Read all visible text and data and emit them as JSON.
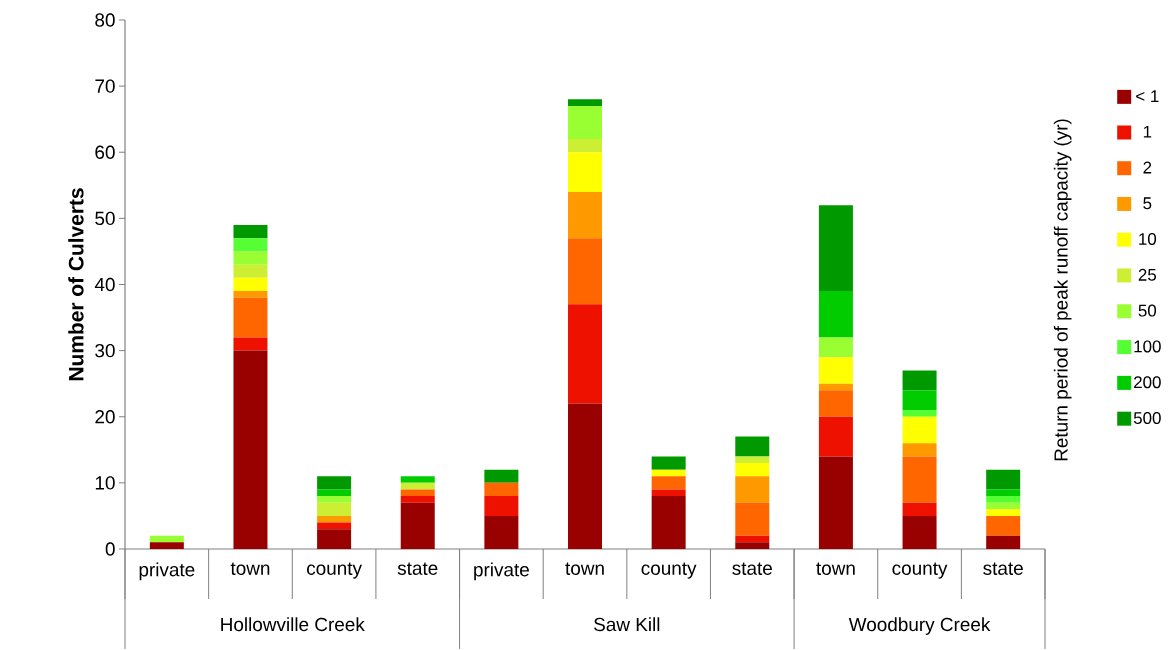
{
  "chart_data": {
    "type": "bar",
    "stacked": true,
    "ylabel": "Number of Culverts",
    "legend_title": "Return period of peak runoff capacity (yr)",
    "legend": "right",
    "categories": [
      "private",
      "town",
      "county",
      "state",
      "private",
      "town",
      "county",
      "state",
      "town",
      "county",
      "state"
    ],
    "annotations": [
      "Hollowville Creek",
      "Saw Kill",
      "Woodbury Creek"
    ],
    "ylim": [
      0,
      80
    ],
    "yticks": [
      0,
      10,
      20,
      30,
      40,
      50,
      60,
      70,
      80
    ],
    "grid": false,
    "series": [
      {
        "name": "< 1",
        "color": "#990000",
        "values": [
          1,
          30,
          3,
          7,
          5,
          22,
          8,
          1,
          14,
          5,
          2
        ]
      },
      {
        "name": "1",
        "color": "#ee1100",
        "values": [
          0,
          2,
          1,
          1,
          3,
          15,
          1,
          1,
          6,
          2,
          0
        ]
      },
      {
        "name": "2",
        "color": "#ff6600",
        "values": [
          0,
          6,
          0,
          1,
          2,
          10,
          2,
          5,
          4,
          7,
          3
        ]
      },
      {
        "name": "5",
        "color": "#ff9900",
        "values": [
          0,
          1,
          1,
          0,
          0,
          7,
          0,
          4,
          1,
          2,
          0
        ]
      },
      {
        "name": "10",
        "color": "#ffff00",
        "values": [
          0,
          2,
          0,
          0,
          0,
          6,
          1,
          2,
          4,
          4,
          1
        ]
      },
      {
        "name": "25",
        "color": "#ccee33",
        "values": [
          0,
          2,
          2,
          1,
          0,
          2,
          0,
          1,
          0,
          0,
          0
        ]
      },
      {
        "name": "50",
        "color": "#99ff33",
        "values": [
          1,
          2,
          1,
          0,
          0,
          5,
          0,
          0,
          3,
          0,
          1
        ]
      },
      {
        "name": "100",
        "color": "#55ff33",
        "values": [
          0,
          2,
          0,
          0,
          0,
          0,
          0,
          0,
          0,
          1,
          1
        ]
      },
      {
        "name": "200",
        "color": "#00cc00",
        "values": [
          0,
          0,
          1,
          1,
          0,
          0,
          0,
          0,
          7,
          3,
          1
        ]
      },
      {
        "name": "500",
        "color": "#009900",
        "values": [
          0,
          2,
          2,
          0,
          2,
          1,
          2,
          3,
          13,
          3,
          3
        ]
      }
    ]
  }
}
